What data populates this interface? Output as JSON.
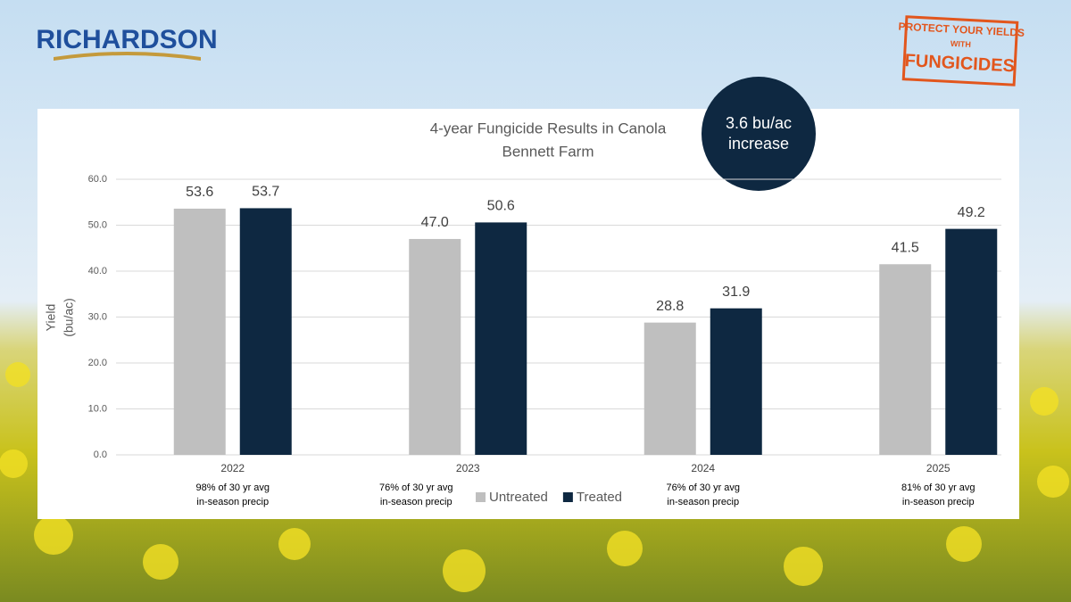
{
  "logo": "RICHARDSON",
  "badge": [
    "PROTECT YOUR YIELDS",
    "WITH",
    "FUNGICIDES"
  ],
  "chart_data": {
    "type": "bar",
    "title": "4-year Fungicide Results in Canola",
    "subtitle": "Bennett Farm",
    "annotation": [
      "3.6 bu/ac",
      "increase"
    ],
    "y_label": [
      "Yield",
      "(bu/ac)"
    ],
    "categories": [
      "2022",
      "2023",
      "2024",
      "2025"
    ],
    "category_notes": [
      [
        "98% of 30 yr avg",
        "in-season precip"
      ],
      [
        "76% of 30 yr avg",
        "in-season precip"
      ],
      [
        "76% of 30 yr avg",
        "in-season precip"
      ],
      [
        "81% of 30 yr avg",
        "in-season precip"
      ]
    ],
    "series": [
      {
        "name": "Untreated",
        "color": "#bfbfbf",
        "values": [
          53.6,
          47.0,
          28.8,
          41.5
        ],
        "value_labels": [
          "53.6",
          "47.0",
          "28.8",
          "41.5"
        ]
      },
      {
        "name": "Treated",
        "color": "#0e2841",
        "values": [
          53.7,
          50.6,
          31.9,
          49.2
        ],
        "value_labels": [
          "53.7",
          "50.6",
          "31.9",
          "49.2"
        ]
      }
    ],
    "ylim": [
      0,
      60
    ],
    "yticks": [
      {
        "value": 0,
        "label": "0.0"
      },
      {
        "value": 10,
        "label": "10.0"
      },
      {
        "value": 20,
        "label": "20.0"
      },
      {
        "value": 30,
        "label": "30.0"
      },
      {
        "value": 40,
        "label": "40.0"
      },
      {
        "value": 50,
        "label": "50.0"
      },
      {
        "value": 60,
        "label": "60.0"
      }
    ],
    "grid": true,
    "legend": "bottom"
  }
}
